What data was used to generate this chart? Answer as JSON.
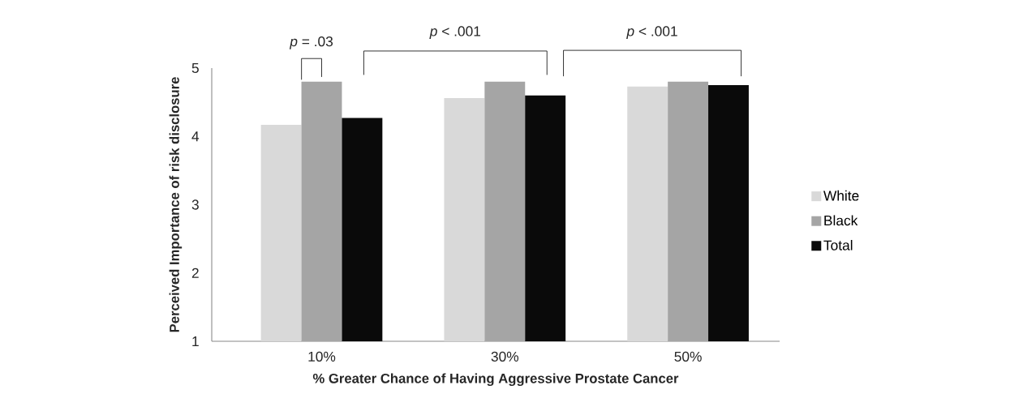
{
  "chart_data": {
    "type": "bar",
    "xlabel": "% Greater Chance of Having Aggressive Prostate Cancer",
    "ylabel": "Perceived Importance of risk disclosure",
    "categories": [
      "10%",
      "30%",
      "50%"
    ],
    "series": [
      {
        "name": "White",
        "color": "#d9d9d9",
        "values": [
          4.17,
          4.56,
          4.73
        ]
      },
      {
        "name": "Black",
        "color": "#a5a5a5",
        "values": [
          4.8,
          4.8,
          4.8
        ]
      },
      {
        "name": "Total",
        "color": "#0a0a0a",
        "values": [
          4.27,
          4.6,
          4.75
        ]
      }
    ],
    "ylim": [
      1,
      5
    ],
    "yticks": [
      1,
      2,
      3,
      4,
      5
    ],
    "grid": false,
    "legend": "right",
    "annotations": [
      "*p* = .03",
      "*p* < .001",
      "*p* < .001"
    ]
  }
}
